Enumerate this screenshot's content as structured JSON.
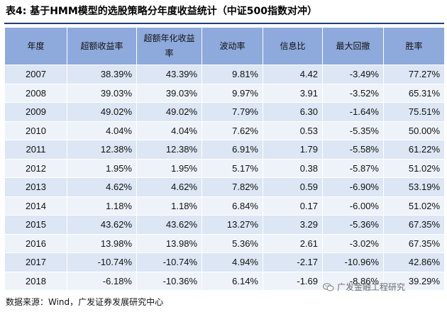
{
  "title": "表4: 基于HMM模型的选股策略分年度收益统计（中证500指数对冲）",
  "table": {
    "headers": [
      "年度",
      "超额收益率",
      "超额年化收益率",
      "波动率",
      "信息比",
      "最大回撤",
      "胜率"
    ],
    "rows": [
      [
        "2007",
        "38.39%",
        "43.39%",
        "9.81%",
        "4.42",
        "-3.49%",
        "77.27%"
      ],
      [
        "2008",
        "39.03%",
        "39.03%",
        "9.97%",
        "3.91",
        "-3.52%",
        "65.31%"
      ],
      [
        "2009",
        "49.02%",
        "49.02%",
        "7.79%",
        "6.30",
        "-1.64%",
        "75.51%"
      ],
      [
        "2010",
        "4.04%",
        "4.04%",
        "7.62%",
        "0.53",
        "-5.35%",
        "50.00%"
      ],
      [
        "2011",
        "12.38%",
        "12.38%",
        "6.91%",
        "1.79",
        "-5.58%",
        "61.22%"
      ],
      [
        "2012",
        "1.95%",
        "1.95%",
        "5.17%",
        "0.38",
        "-5.87%",
        "51.02%"
      ],
      [
        "2013",
        "4.62%",
        "4.62%",
        "7.82%",
        "0.59",
        "-6.90%",
        "53.19%"
      ],
      [
        "2014",
        "1.18%",
        "1.18%",
        "6.84%",
        "0.17",
        "-6.00%",
        "51.02%"
      ],
      [
        "2015",
        "43.62%",
        "43.62%",
        "13.27%",
        "3.29",
        "-5.36%",
        "67.35%"
      ],
      [
        "2016",
        "13.98%",
        "13.98%",
        "5.36%",
        "2.61",
        "-3.02%",
        "67.35%"
      ],
      [
        "2017",
        "-10.74%",
        "-10.74%",
        "4.94%",
        "-2.17",
        "-10.96%",
        "42.86%"
      ],
      [
        "2018",
        "-6.18%",
        "-10.36%",
        "6.14%",
        "-1.69",
        "-8.86%",
        "39.29%"
      ]
    ]
  },
  "source": "数据来源：Wind，广发证券发展研究中心",
  "watermark": "广发金融工程研究",
  "colors": {
    "header_bg": "#8ea9db",
    "row_odd": "#dce6f4",
    "row_even": "#eef3fa",
    "rule": "#1f3f7a"
  }
}
